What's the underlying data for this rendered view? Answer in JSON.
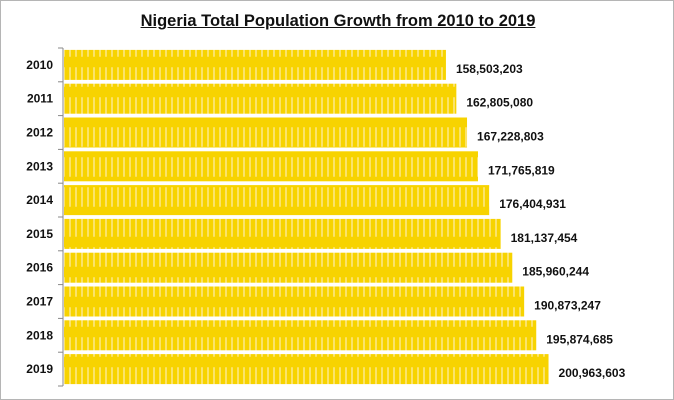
{
  "chart_data": {
    "type": "bar",
    "orientation": "horizontal",
    "title": "Nigeria Total Population Growth from 2010 to 2019",
    "xlabel": "",
    "ylabel": "",
    "categories": [
      "2010",
      "2011",
      "2012",
      "2013",
      "2014",
      "2015",
      "2016",
      "2017",
      "2018",
      "2019"
    ],
    "values": [
      158503203,
      162805080,
      167228803,
      171765819,
      176404931,
      181137454,
      185960244,
      190873247,
      195874685,
      200963603
    ],
    "data_labels": [
      "158,503,203",
      "162,805,080",
      "167,228,803",
      "171,765,819",
      "176,404,931",
      "181,137,454",
      "185,960,244",
      "190,873,247",
      "195,874,685",
      "200,963,603"
    ],
    "xlim": [
      0,
      250000000
    ],
    "grid": false,
    "legend": "none",
    "bar_color": "#f7d300",
    "stripe_color": "#fbe36a"
  }
}
